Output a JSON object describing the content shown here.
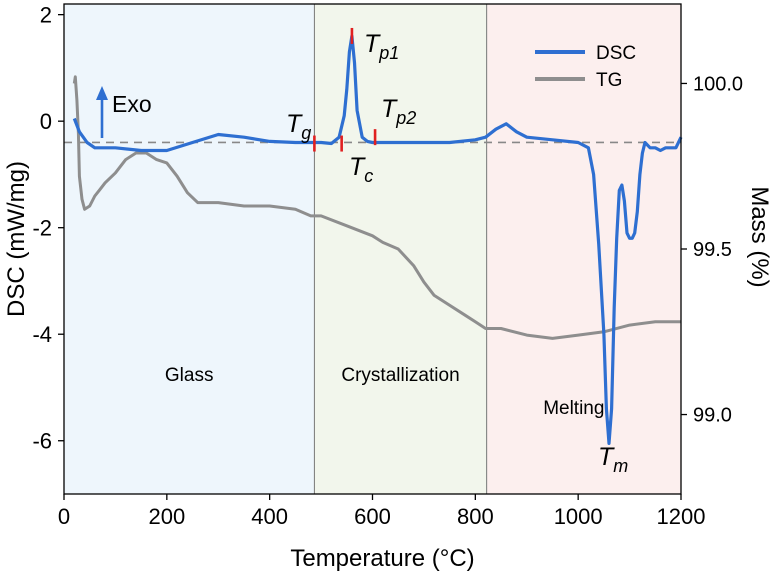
{
  "chart_data": {
    "type": "line",
    "xlabel": "Temperature (°C)",
    "ylabel": "DSC (mW/mg)",
    "y2label": "Mass (%)",
    "xlim": [
      0,
      1200
    ],
    "ylim": [
      -7,
      2.2
    ],
    "y2lim": [
      98.76,
      100.24
    ],
    "x_ticks": [
      0,
      200,
      400,
      600,
      800,
      1000,
      1200
    ],
    "y_ticks": [
      -6,
      -4,
      -2,
      0,
      2
    ],
    "y2_ticks": [
      99.0,
      99.5,
      100.0
    ],
    "baseline_y": -0.4,
    "regions": [
      {
        "label": "Glass",
        "x": [
          0,
          487
        ],
        "color": "#eef6fc"
      },
      {
        "label": "Crystallization",
        "x": [
          487,
          822
        ],
        "color": "#f2f6ec"
      },
      {
        "label": "Melting",
        "x": [
          822,
          1200
        ],
        "color": "#fcefee"
      }
    ],
    "series": [
      {
        "name": "DSC",
        "axis": "left",
        "color": "#2e6fd1",
        "x": [
          20,
          30,
          45,
          60,
          80,
          100,
          150,
          200,
          250,
          300,
          350,
          400,
          450,
          487,
          500,
          520,
          535,
          545,
          550,
          555,
          560,
          565,
          570,
          580,
          590,
          600,
          620,
          650,
          700,
          750,
          800,
          820,
          840,
          860,
          880,
          900,
          950,
          1000,
          1020,
          1030,
          1040,
          1050,
          1055,
          1060,
          1065,
          1070,
          1075,
          1080,
          1085,
          1090,
          1095,
          1100,
          1105,
          1110,
          1115,
          1120,
          1125,
          1130,
          1140,
          1150,
          1160,
          1170,
          1180,
          1190,
          1200
        ],
        "y": [
          0.05,
          -0.2,
          -0.4,
          -0.5,
          -0.5,
          -0.5,
          -0.55,
          -0.55,
          -0.4,
          -0.25,
          -0.3,
          -0.38,
          -0.4,
          -0.4,
          -0.4,
          -0.42,
          -0.3,
          0.1,
          0.6,
          1.3,
          1.6,
          1.1,
          0.2,
          -0.3,
          -0.38,
          -0.4,
          -0.4,
          -0.4,
          -0.4,
          -0.4,
          -0.35,
          -0.3,
          -0.15,
          -0.05,
          -0.2,
          -0.3,
          -0.35,
          -0.4,
          -0.5,
          -1.0,
          -2.3,
          -4.0,
          -5.4,
          -6.05,
          -5.4,
          -3.5,
          -2.2,
          -1.3,
          -1.2,
          -1.5,
          -2.1,
          -2.2,
          -2.2,
          -2.1,
          -1.7,
          -1.0,
          -0.6,
          -0.4,
          -0.5,
          -0.5,
          -0.55,
          -0.5,
          -0.5,
          -0.5,
          -0.3
        ]
      },
      {
        "name": "TG",
        "axis": "right",
        "color": "#8e8e8e",
        "x": [
          20,
          22,
          25,
          28,
          30,
          35,
          40,
          50,
          60,
          70,
          80,
          100,
          120,
          140,
          160,
          180,
          200,
          220,
          240,
          260,
          280,
          300,
          350,
          400,
          450,
          480,
          500,
          550,
          600,
          620,
          650,
          680,
          700,
          720,
          750,
          780,
          800,
          820,
          850,
          900,
          950,
          1000,
          1050,
          1100,
          1150,
          1200
        ],
        "y": [
          100.0,
          100.02,
          99.95,
          99.85,
          99.72,
          99.65,
          99.62,
          99.63,
          99.66,
          99.68,
          99.7,
          99.73,
          99.77,
          99.79,
          99.79,
          99.77,
          99.76,
          99.72,
          99.67,
          99.64,
          99.64,
          99.64,
          99.63,
          99.63,
          99.62,
          99.6,
          99.6,
          99.57,
          99.54,
          99.52,
          99.5,
          99.45,
          99.4,
          99.36,
          99.33,
          99.3,
          99.28,
          99.26,
          99.26,
          99.24,
          99.23,
          99.24,
          99.25,
          99.27,
          99.28,
          99.28
        ]
      }
    ],
    "region_labels": [
      "Glass",
      "Crystallization",
      "Melting"
    ],
    "annotations": {
      "exo": "Exo",
      "tg": {
        "main": "T",
        "sub": "g",
        "x": 487,
        "y": -0.42
      },
      "tc": {
        "main": "T",
        "sub": "c",
        "x": 540,
        "y": -0.42
      },
      "tp1": {
        "main": "T",
        "sub": "p1",
        "x": 560,
        "y": 1.6
      },
      "tp2": {
        "main": "T",
        "sub": "p2",
        "x": 605,
        "y": -0.3
      },
      "tm": {
        "main": "T",
        "sub": "m",
        "x": 1062,
        "y": -6.05
      }
    },
    "legend": {
      "position": "top-right",
      "entries": [
        "DSC",
        "TG"
      ]
    }
  }
}
